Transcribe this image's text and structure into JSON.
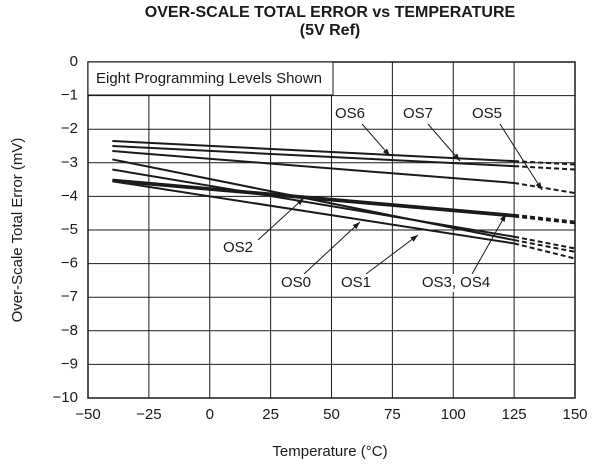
{
  "chart_data": {
    "type": "line",
    "title": "OVER-SCALE TOTAL ERROR vs TEMPERATURE",
    "subtitle": "(5V Ref)",
    "xlabel": "Temperature (°C)",
    "ylabel": "Over-Scale Total Error (mV)",
    "note": "Eight Programming Levels Shown",
    "x": [
      -40,
      125,
      150
    ],
    "extrapolated_from": 125,
    "color": "#1a1a1a",
    "series": [
      {
        "values": [
          -2.35,
          -2.95,
          -3.05
        ]
      },
      {
        "values": [
          -2.5,
          -3.1,
          -3.2
        ]
      },
      {
        "values": [
          -2.65,
          -3.6,
          -3.9
        ]
      },
      {
        "values": [
          -2.9,
          -5.3,
          -5.65
        ]
      },
      {
        "values": [
          -3.2,
          -5.2,
          -5.55
        ]
      },
      {
        "values": [
          -3.55,
          -5.4,
          -5.85
        ]
      },
      {
        "values": [
          -3.5,
          -4.55,
          -4.75
        ]
      },
      {
        "values": [
          -3.55,
          -4.6,
          -4.8
        ]
      }
    ],
    "annotations": [
      "OS6",
      "OS7",
      "OS5",
      "OS2",
      "OS0",
      "OS1",
      "OS3, OS4"
    ],
    "xlim": [
      -50,
      150
    ],
    "xticks": [
      {
        "value": -50,
        "label": "−50"
      },
      {
        "value": -25,
        "label": "−25"
      },
      0,
      25,
      50,
      75,
      100,
      125,
      150
    ],
    "ylim": [
      -10,
      0
    ],
    "yticks": [
      0,
      {
        "value": -1,
        "label": "−1"
      },
      {
        "value": -2,
        "label": "−2"
      },
      {
        "value": -3,
        "label": "−3"
      },
      {
        "value": -4,
        "label": "−4"
      },
      {
        "value": -5,
        "label": "−5"
      },
      {
        "value": -6,
        "label": "−6"
      },
      {
        "value": -7,
        "label": "−7"
      },
      {
        "value": -8,
        "label": "−8"
      },
      {
        "value": -9,
        "label": "−9"
      },
      {
        "value": -10,
        "label": "−10"
      }
    ],
    "grid": true
  }
}
